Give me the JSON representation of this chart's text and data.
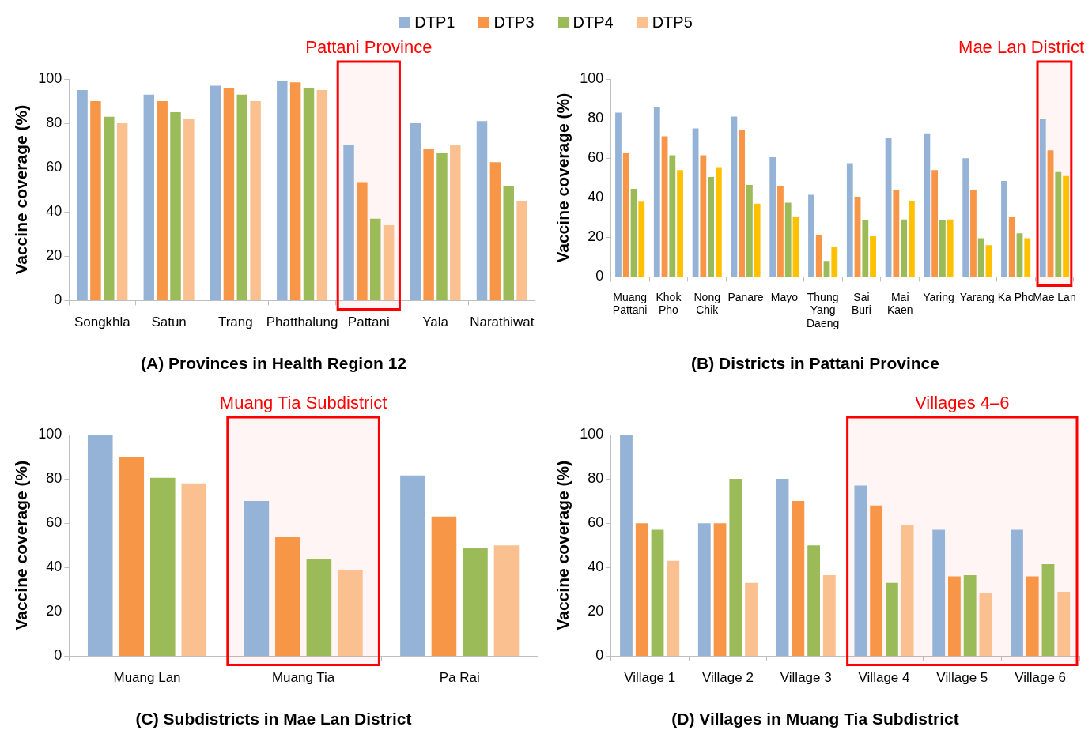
{
  "chart_data": [
    {
      "type": "bar",
      "title": "(A) Provinces in Health Region 12",
      "ylabel": "Vaccine coverage (%)",
      "categories": [
        "Songkhla",
        "Satun",
        "Trang",
        "Phatthalung",
        "Pattani",
        "Yala",
        "Narathiwat"
      ],
      "ylim": [
        0,
        100
      ],
      "yticks": [
        0,
        20,
        40,
        60,
        80,
        100
      ],
      "grid": false,
      "legend": "top",
      "series": [
        {
          "name": "DTP1",
          "color": "#95b3d7",
          "values": [
            95,
            93,
            97,
            99,
            70,
            80,
            81
          ]
        },
        {
          "name": "DTP3",
          "color": "#f79646",
          "values": [
            90,
            90,
            96,
            98.5,
            53.5,
            68.5,
            62.5
          ]
        },
        {
          "name": "DTP4",
          "color": "#9bbb59",
          "values": [
            83,
            85,
            93,
            96,
            37,
            66.5,
            51.5
          ]
        },
        {
          "name": "DTP5",
          "color": "#fac090",
          "values": [
            80,
            82,
            90,
            95,
            34,
            70,
            45
          ]
        }
      ],
      "bands": [
        {
          "axis": "x",
          "from": "Pattani",
          "to": "Pattani",
          "label": "Pattani Province",
          "color": "#ff0000"
        }
      ]
    },
    {
      "type": "bar",
      "title": "(B) Districts in Pattani Province",
      "ylabel": "Vaccine coverage (%)",
      "categories": [
        "Muang\nPattani",
        "Khok\nPho",
        "Nong\nChik",
        "Panare",
        "Mayo",
        "Thung\nYang\nDaeng",
        "Sai\nBuri",
        "Mai\nKaen",
        "Yaring",
        "Yarang",
        "Ka Pho",
        "Mae Lan"
      ],
      "ylim": [
        0,
        100
      ],
      "yticks": [
        0,
        20,
        40,
        60,
        80,
        100
      ],
      "grid": false,
      "series": [
        {
          "color": "#95b3d7",
          "values": [
            83,
            86,
            75,
            81,
            60.5,
            41.5,
            57.5,
            70,
            72.5,
            60,
            48.5,
            80
          ]
        },
        {
          "color": "#f79646",
          "values": [
            62.5,
            71,
            61.5,
            74,
            46,
            21,
            40.5,
            44,
            54,
            44,
            30.5,
            64
          ]
        },
        {
          "color": "#9bbb59",
          "values": [
            44.5,
            61.5,
            50.5,
            46.5,
            37.5,
            8,
            28.5,
            29,
            28.5,
            19.5,
            22,
            53
          ]
        },
        {
          "color": "#ffc000",
          "values": [
            38,
            54,
            55.5,
            37,
            30.5,
            15,
            20.5,
            38.5,
            29,
            16,
            19.5,
            51
          ]
        }
      ],
      "bands": [
        {
          "axis": "x",
          "from": "Mae Lan",
          "to": "Mae Lan",
          "label": "Mae Lan District",
          "color": "#ff0000"
        }
      ]
    },
    {
      "type": "bar",
      "title": "(C) Subdistricts in Mae Lan District",
      "ylabel": "Vaccine coverage (%)",
      "categories": [
        "Muang Lan",
        "Muang Tia",
        "Pa Rai"
      ],
      "ylim": [
        0,
        100
      ],
      "yticks": [
        0,
        20,
        40,
        60,
        80,
        100
      ],
      "grid": false,
      "series": [
        {
          "color": "#95b3d7",
          "values": [
            100,
            70,
            81.5
          ]
        },
        {
          "color": "#f79646",
          "values": [
            90,
            54,
            63
          ]
        },
        {
          "color": "#9bbb59",
          "values": [
            80.5,
            44,
            49
          ]
        },
        {
          "color": "#fac090",
          "values": [
            78,
            39,
            50
          ]
        }
      ],
      "bands": [
        {
          "axis": "x",
          "from": "Muang Tia",
          "to": "Muang Tia",
          "label": "Muang Tia Subdistrict",
          "color": "#ff0000"
        }
      ]
    },
    {
      "type": "bar",
      "title": "(D) Villages in Muang Tia Subdistrict",
      "ylabel": "Vaccine coverage (%)",
      "categories": [
        "Village 1",
        "Village 2",
        "Village 3",
        "Village 4",
        "Village 5",
        "Village 6"
      ],
      "ylim": [
        0,
        100
      ],
      "yticks": [
        0,
        20,
        40,
        60,
        80,
        100
      ],
      "grid": false,
      "series": [
        {
          "color": "#95b3d7",
          "values": [
            100,
            60,
            80,
            77,
            57,
            57
          ]
        },
        {
          "color": "#f79646",
          "values": [
            60,
            60,
            70,
            68,
            36,
            36
          ]
        },
        {
          "color": "#9bbb59",
          "values": [
            57,
            80,
            50,
            33,
            36.5,
            41.5
          ]
        },
        {
          "color": "#fac090",
          "values": [
            43,
            33,
            36.5,
            59,
            28.5,
            29
          ]
        }
      ],
      "bands": [
        {
          "axis": "x",
          "from": "Village 4",
          "to": "Village 6",
          "label": "Villages 4–6",
          "color": "#ff0000"
        }
      ]
    }
  ]
}
